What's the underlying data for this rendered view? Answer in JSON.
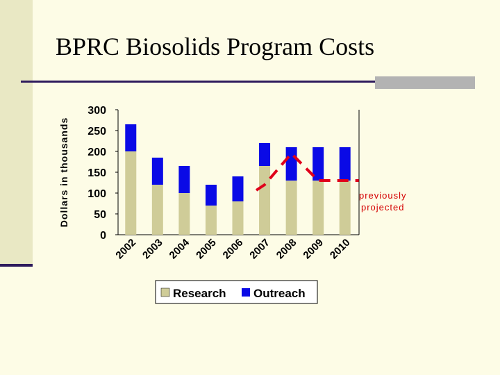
{
  "slide": {
    "title": "BPRC Biosolids Program Costs"
  },
  "colors": {
    "research": "#cfcc98",
    "outreach": "#0a0ae6",
    "projection": "#e0001b"
  },
  "chart_data": {
    "type": "bar",
    "stacked": true,
    "categories": [
      "2002",
      "2003",
      "2004",
      "2005",
      "2006",
      "2007",
      "2008",
      "2009",
      "2010"
    ],
    "series": [
      {
        "name": "Research",
        "values": [
          200,
          120,
          100,
          70,
          80,
          165,
          130,
          130,
          130
        ]
      },
      {
        "name": "Outreach",
        "values": [
          65,
          65,
          65,
          50,
          60,
          55,
          80,
          80,
          80
        ]
      }
    ],
    "ylabel": "Dollars in thousands",
    "xlabel": "",
    "ylim": [
      0,
      300
    ],
    "yticks": [
      0,
      50,
      100,
      150,
      200,
      250,
      300
    ],
    "legend": "bottom",
    "projection": {
      "label_line1": "previously",
      "label_line2": "projected",
      "points": [
        {
          "x": "2007",
          "y": 120
        },
        {
          "x": "2008",
          "y": 195
        },
        {
          "x": "2009",
          "y": 130
        },
        {
          "x": "2010",
          "y": 130
        }
      ]
    }
  }
}
